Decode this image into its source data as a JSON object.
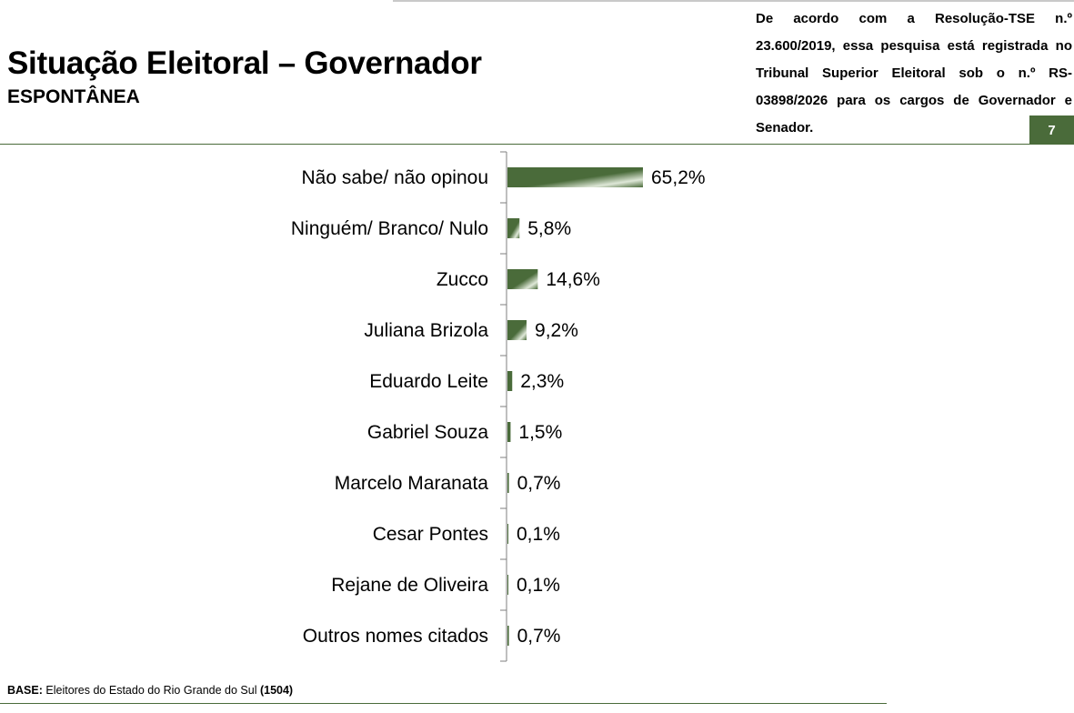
{
  "header": {
    "title": "Situação Eleitoral – Governador",
    "subtitle": "ESPONTÂNEA",
    "notice": "De acordo com a Resolução-TSE n.º 23.600/2019, essa pesquisa está registrada no Tribunal Superior Eleitoral sob o n.º RS-03898/2026 para os cargos de Governador e Senador.",
    "page_number": "7"
  },
  "footer": {
    "base_label": "BASE:",
    "base_text": " Eleitores do Estado do Rio Grande do Sul ",
    "base_count": "(1504)"
  },
  "colors": {
    "bar_dark": "#4a6b3a",
    "bar_light": "#dfe8d8",
    "rule": "#4a6b3a",
    "badge": "#4a6b3a"
  },
  "chart_data": {
    "type": "bar",
    "orientation": "horizontal",
    "categories": [
      "Não sabe/ não opinou",
      "Ninguém/ Branco/ Nulo",
      "Zucco",
      "Juliana Brizola",
      "Eduardo Leite",
      "Gabriel Souza",
      "Marcelo Maranata",
      "Cesar Pontes",
      "Rejane de Oliveira",
      "Outros nomes citados"
    ],
    "values": [
      65.2,
      5.8,
      14.6,
      9.2,
      2.3,
      1.5,
      0.7,
      0.1,
      0.1,
      0.7
    ],
    "value_labels": [
      "65,2%",
      "5,8%",
      "14,6%",
      "9,2%",
      "2,3%",
      "1,5%",
      "0,7%",
      "0,1%",
      "0,1%",
      "0,7%"
    ],
    "unit": "%",
    "xlim": [
      0,
      100
    ],
    "grid": false,
    "legend": "none"
  }
}
